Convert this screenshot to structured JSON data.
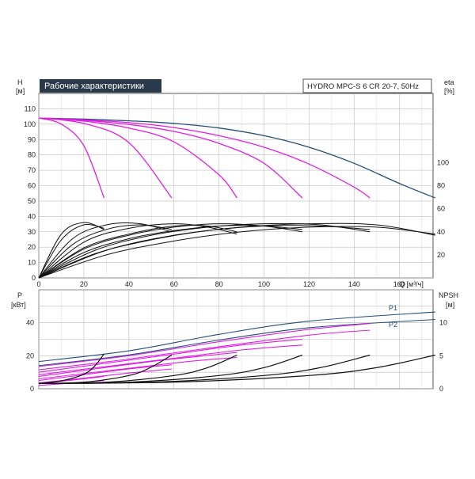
{
  "chart_data": [
    {
      "type": "line",
      "title": "Рабочие характеристики",
      "subtitle": "HYDRO MPC-S 6 CR 20-7, 50Hz",
      "xlabel": "Q [м³/ч]",
      "ylabel_unit": "H",
      "ylabel_sub": "[м]",
      "y2label_unit": "eta",
      "y2label_sub": "[%]",
      "xlim": [
        0,
        175
      ],
      "ylim": [
        0,
        120
      ],
      "y2lim": [
        0,
        160
      ],
      "x_ticks": [
        0,
        20,
        40,
        60,
        80,
        100,
        120,
        140,
        160
      ],
      "y_ticks": [
        0,
        10,
        20,
        30,
        40,
        50,
        60,
        70,
        80,
        90,
        100,
        110
      ],
      "y2_ticks": [
        20,
        40,
        60,
        80,
        100
      ],
      "grid": true,
      "colors": {
        "magenta": "#e020e0",
        "blue": "#1f4e79",
        "black": "#111111",
        "grid": "#bbbbbb"
      },
      "head_curves": [
        {
          "color": "blue",
          "x": [
            0,
            20,
            40,
            60,
            80,
            100,
            120,
            140,
            160,
            176
          ],
          "y": [
            104,
            103.3,
            102.2,
            100.5,
            97.5,
            92.5,
            85,
            74.5,
            61.5,
            52
          ]
        },
        {
          "color": "magenta",
          "x": [
            0,
            20,
            40,
            60,
            80,
            100,
            120,
            140,
            147
          ],
          "y": [
            104,
            102.8,
            101,
            97.8,
            92.5,
            85,
            74,
            59,
            52
          ]
        },
        {
          "color": "magenta",
          "x": [
            0,
            20,
            40,
            60,
            80,
            100,
            117
          ],
          "y": [
            104,
            102.5,
            99.8,
            95.3,
            87.5,
            74.5,
            52
          ]
        },
        {
          "color": "magenta",
          "x": [
            0,
            20,
            40,
            60,
            80,
            88
          ],
          "y": [
            104,
            102,
            97.5,
            88.5,
            67,
            52
          ]
        },
        {
          "color": "magenta",
          "x": [
            0,
            20,
            40,
            59
          ],
          "y": [
            104,
            100.5,
            88,
            52
          ]
        },
        {
          "color": "magenta",
          "x": [
            0,
            10,
            20,
            29
          ],
          "y": [
            104,
            100,
            86,
            52
          ]
        }
      ],
      "efficiency_curves": [
        {
          "color": "black",
          "x": [
            0,
            10,
            20,
            29
          ],
          "y": [
            0,
            38,
            48,
            42
          ]
        },
        {
          "color": "black",
          "x": [
            0,
            10,
            20,
            29
          ],
          "y": [
            0,
            33,
            46,
            43
          ]
        },
        {
          "color": "black",
          "x": [
            0,
            15,
            30,
            45,
            59
          ],
          "y": [
            0,
            34,
            46,
            47,
            40
          ]
        },
        {
          "color": "black",
          "x": [
            0,
            15,
            30,
            45,
            59
          ],
          "y": [
            0,
            29,
            42,
            46,
            42
          ]
        },
        {
          "color": "black",
          "x": [
            0,
            20,
            40,
            60,
            75,
            88
          ],
          "y": [
            0,
            31,
            43,
            47,
            44,
            38
          ]
        },
        {
          "color": "black",
          "x": [
            0,
            20,
            40,
            60,
            75,
            88
          ],
          "y": [
            0,
            26,
            38,
            45,
            45,
            40
          ]
        },
        {
          "color": "black",
          "x": [
            0,
            20,
            40,
            60,
            80,
            100,
            117
          ],
          "y": [
            0,
            25,
            37,
            44,
            47,
            45,
            40
          ]
        },
        {
          "color": "black",
          "x": [
            0,
            20,
            40,
            60,
            80,
            100,
            117
          ],
          "y": [
            0,
            22,
            34,
            41,
            45,
            45,
            42
          ]
        },
        {
          "color": "black",
          "x": [
            0,
            25,
            50,
            75,
            100,
            125,
            147
          ],
          "y": [
            0,
            24,
            37,
            44,
            47,
            46,
            40
          ]
        },
        {
          "color": "black",
          "x": [
            0,
            25,
            50,
            75,
            100,
            125,
            147
          ],
          "y": [
            0,
            21,
            33,
            41,
            45,
            45,
            42
          ]
        },
        {
          "color": "black",
          "x": [
            0,
            30,
            60,
            90,
            120,
            150,
            176
          ],
          "y": [
            0,
            24,
            37,
            44,
            47,
            46,
            37
          ]
        },
        {
          "color": "black",
          "x": [
            0,
            30,
            60,
            90,
            120,
            150,
            176
          ],
          "y": [
            0,
            20,
            32,
            40,
            44,
            44,
            38
          ]
        }
      ]
    },
    {
      "type": "line",
      "xlabel": "",
      "ylabel_unit": "P",
      "ylabel_sub": "[кВт]",
      "y2label_unit": "NPSH",
      "y2label_sub": "[м]",
      "xlim": [
        0,
        175
      ],
      "ylim": [
        0,
        60
      ],
      "y2lim": [
        0,
        15
      ],
      "y_ticks": [
        0,
        20,
        40
      ],
      "y2_ticks": [
        0,
        5,
        10
      ],
      "series_labels": [
        "P1",
        "P2"
      ],
      "power_curves": [
        {
          "label": "P1",
          "color": "blue",
          "x": [
            0,
            40,
            80,
            120,
            176
          ],
          "y": [
            16.5,
            23,
            33,
            41,
            46.5
          ]
        },
        {
          "label": "P2",
          "color": "blue",
          "x": [
            0,
            40,
            80,
            120,
            176
          ],
          "y": [
            14,
            20.5,
            29.5,
            37,
            42
          ]
        },
        {
          "color": "magenta",
          "x": [
            0,
            40,
            80,
            120,
            147
          ],
          "y": [
            13.5,
            20,
            28.5,
            36,
            39.5
          ]
        },
        {
          "color": "magenta",
          "x": [
            0,
            40,
            80,
            120,
            147
          ],
          "y": [
            11.5,
            18,
            25.5,
            32.5,
            35.5
          ]
        },
        {
          "color": "magenta",
          "x": [
            0,
            30,
            60,
            90,
            117
          ],
          "y": [
            10,
            15.5,
            21,
            26.5,
            30
          ]
        },
        {
          "color": "magenta",
          "x": [
            0,
            30,
            60,
            90,
            117
          ],
          "y": [
            8.5,
            13.5,
            18.5,
            23.5,
            26.5
          ]
        },
        {
          "color": "magenta",
          "x": [
            0,
            25,
            50,
            70,
            88
          ],
          "y": [
            7.5,
            12,
            16.5,
            19.5,
            22
          ]
        },
        {
          "color": "magenta",
          "x": [
            0,
            25,
            50,
            70,
            88
          ],
          "y": [
            6,
            10,
            14,
            17,
            19
          ]
        },
        {
          "color": "magenta",
          "x": [
            0,
            20,
            40,
            59
          ],
          "y": [
            5,
            8.5,
            12,
            14.5
          ]
        },
        {
          "color": "magenta",
          "x": [
            0,
            20,
            40,
            59
          ],
          "y": [
            3.5,
            6.5,
            9.5,
            12
          ]
        },
        {
          "color": "magenta",
          "x": [
            0,
            10,
            20,
            29
          ],
          "y": [
            3,
            4.5,
            6,
            7.5
          ]
        },
        {
          "color": "magenta",
          "x": [
            0,
            10,
            20,
            29
          ],
          "y": [
            2,
            3,
            4,
            5
          ]
        }
      ],
      "npsh_curves": [
        {
          "color": "black",
          "x": [
            0,
            10,
            20,
            25,
            29
          ],
          "y": [
            0.8,
            1.2,
            2.2,
            3.5,
            5.3
          ]
        },
        {
          "color": "black",
          "x": [
            0,
            20,
            40,
            50,
            59
          ],
          "y": [
            0.8,
            1.0,
            2.0,
            3.3,
            5.1
          ]
        },
        {
          "color": "black",
          "x": [
            0,
            30,
            60,
            75,
            88
          ],
          "y": [
            0.8,
            1.0,
            2.0,
            3.2,
            5.1
          ]
        },
        {
          "color": "black",
          "x": [
            0,
            40,
            80,
            100,
            117
          ],
          "y": [
            0.8,
            1.0,
            2.0,
            3.2,
            5.1
          ]
        },
        {
          "color": "black",
          "x": [
            0,
            50,
            100,
            125,
            147
          ],
          "y": [
            0.8,
            1.0,
            2.0,
            3.2,
            5.1
          ]
        },
        {
          "color": "black",
          "x": [
            0,
            60,
            120,
            150,
            176
          ],
          "y": [
            0.8,
            1.0,
            2.0,
            3.2,
            5.1
          ]
        }
      ]
    }
  ]
}
